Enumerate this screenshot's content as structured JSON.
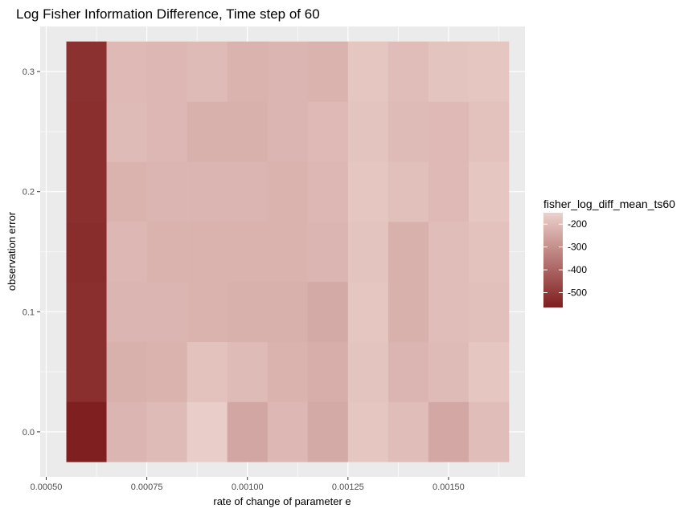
{
  "chart_data": {
    "type": "heatmap",
    "title": "Log Fisher Information Difference, Time step of 60",
    "xlabel": "rate of change of parameter e",
    "ylabel": "observation error",
    "x_ticks": [
      {
        "value": 0.0005,
        "label": "0.00050"
      },
      {
        "value": 0.00075,
        "label": "0.00075"
      },
      {
        "value": 0.001,
        "label": "0.00100"
      },
      {
        "value": 0.00125,
        "label": "0.00125"
      },
      {
        "value": 0.0015,
        "label": "0.00150"
      }
    ],
    "y_ticks": [
      {
        "value": 0.0,
        "label": "0.0"
      },
      {
        "value": 0.1,
        "label": "0.1"
      },
      {
        "value": 0.2,
        "label": "0.2"
      },
      {
        "value": 0.3,
        "label": "0.3"
      }
    ],
    "xlim": [
      0.000485,
      0.00169
    ],
    "ylim": [
      -0.0375,
      0.3375
    ],
    "x": [
      0.0006,
      0.0007,
      0.0008,
      0.0009,
      0.001,
      0.0011,
      0.0012,
      0.0013,
      0.0014,
      0.0015,
      0.0016
    ],
    "y": [
      0.0,
      0.05,
      0.1,
      0.15,
      0.2,
      0.25,
      0.3
    ],
    "z": [
      [
        -560,
        -215,
        -200,
        -160,
        -250,
        -210,
        -240,
        -175,
        -195,
        -245,
        -195
      ],
      [
        -525,
        -225,
        -220,
        -185,
        -200,
        -220,
        -230,
        -180,
        -215,
        -200,
        -175
      ],
      [
        -525,
        -215,
        -215,
        -220,
        -225,
        -225,
        -240,
        -175,
        -225,
        -195,
        -190
      ],
      [
        -530,
        -210,
        -220,
        -220,
        -220,
        -220,
        -215,
        -180,
        -225,
        -195,
        -185
      ],
      [
        -525,
        -220,
        -215,
        -215,
        -215,
        -220,
        -210,
        -175,
        -190,
        -205,
        -175
      ],
      [
        -525,
        -200,
        -210,
        -225,
        -225,
        -215,
        -205,
        -180,
        -200,
        -205,
        -185
      ],
      [
        -520,
        -205,
        -210,
        -200,
        -220,
        -215,
        -220,
        -175,
        -195,
        -180,
        -175
      ]
    ],
    "colorscale": {
      "low": "#7f1d1d",
      "high": "#ecd1cc",
      "zmin": -565,
      "zmax": -150
    },
    "legend": {
      "title": "fisher_log_diff_mean_ts60",
      "breaks": [
        -200,
        -300,
        -400,
        -500
      ],
      "labels": [
        "-200",
        "-300",
        "-400",
        "-500"
      ],
      "position": "right"
    },
    "panel_background": "#ebebeb",
    "grid_color": "#ffffff",
    "grid": true
  }
}
